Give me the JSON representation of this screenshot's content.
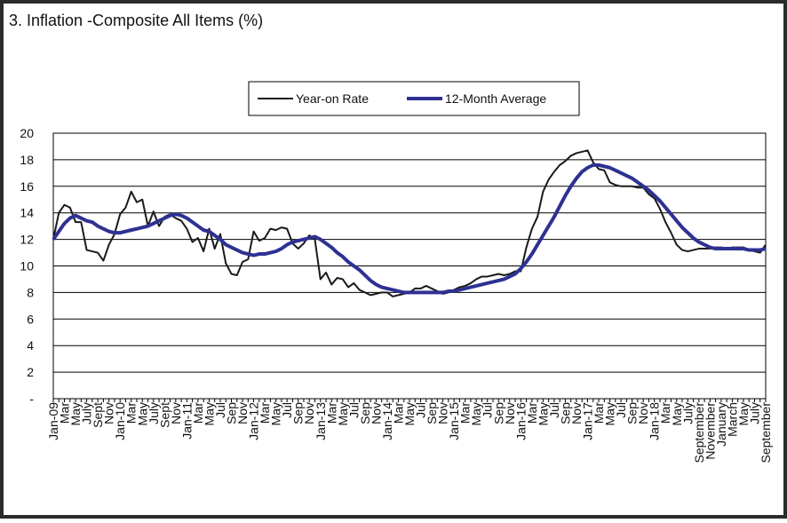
{
  "chart_data": {
    "type": "line",
    "title": "3. Inflation -Composite All Items (%)",
    "categories": [
      "Jan-09",
      null,
      "Mar",
      null,
      "May",
      null,
      "July",
      null,
      "Sept",
      null,
      "Nov",
      null,
      "Jan-10",
      null,
      "Mar",
      null,
      "May",
      null,
      "July",
      null,
      "Sept",
      null,
      "Nov",
      null,
      "Jan-11",
      null,
      "Mar",
      null,
      "May",
      null,
      "Jul",
      null,
      "Sep",
      null,
      "Nov",
      null,
      "Jan-12",
      null,
      "Mar",
      null,
      "May",
      null,
      "Jul",
      null,
      "Sep",
      null,
      "Nov",
      null,
      "Jan-13",
      null,
      "Mar",
      null,
      "May",
      null,
      "Jul",
      null,
      "Sep",
      null,
      "Nov",
      null,
      "Jan-14",
      null,
      "Mar",
      null,
      "May",
      null,
      "Jul",
      null,
      "Sep",
      null,
      "Nov",
      null,
      "Jan-15",
      null,
      "Mar",
      null,
      "May",
      null,
      "Jul",
      null,
      "Sep",
      null,
      "Nov",
      null,
      "Jan-16",
      null,
      "Mar",
      null,
      "May",
      null,
      "Jul",
      null,
      "Sep",
      null,
      "Nov",
      null,
      "Jan-17",
      null,
      "Mar",
      null,
      "May",
      null,
      "Jul",
      null,
      "Sep",
      null,
      "Nov",
      null,
      "Jan-18",
      null,
      "Mar",
      null,
      "May",
      null,
      "July",
      null,
      "September",
      null,
      "November",
      null,
      "January",
      null,
      "March",
      null,
      "May",
      null,
      "July",
      null,
      "September"
    ],
    "series": [
      {
        "name": "Year-on Rate",
        "color": "#1a1a1a",
        "width": 2,
        "values": [
          12.0,
          14.0,
          14.6,
          14.4,
          13.3,
          13.3,
          11.2,
          11.1,
          11.0,
          10.4,
          11.6,
          12.4,
          13.9,
          14.4,
          15.6,
          14.8,
          15.0,
          13.0,
          14.1,
          13.0,
          13.7,
          13.9,
          13.6,
          13.4,
          12.8,
          11.8,
          12.1,
          11.1,
          12.8,
          11.3,
          12.4,
          10.2,
          9.4,
          9.3,
          10.3,
          10.5,
          12.6,
          11.9,
          12.1,
          12.8,
          12.7,
          12.9,
          12.8,
          11.7,
          11.3,
          11.7,
          12.3,
          12.0,
          9.0,
          9.5,
          8.6,
          9.1,
          9.0,
          8.4,
          8.7,
          8.2,
          8.0,
          7.8,
          7.9,
          8.0,
          8.0,
          7.7,
          7.8,
          7.9,
          8.0,
          8.3,
          8.3,
          8.5,
          8.3,
          8.1,
          7.9,
          8.0,
          8.2,
          8.4,
          8.5,
          8.7,
          9.0,
          9.2,
          9.2,
          9.3,
          9.4,
          9.3,
          9.4,
          9.6,
          9.6,
          11.4,
          12.8,
          13.7,
          15.6,
          16.5,
          17.1,
          17.6,
          17.9,
          18.3,
          18.5,
          18.6,
          18.7,
          17.8,
          17.3,
          17.2,
          16.3,
          16.1,
          16.0,
          16.0,
          16.0,
          15.9,
          15.9,
          15.4,
          15.1,
          14.3,
          13.3,
          12.5,
          11.6,
          11.2,
          11.1,
          11.2,
          11.3,
          11.3,
          11.3,
          11.4,
          11.4,
          11.3,
          11.4,
          11.4,
          11.4,
          11.2,
          11.1,
          11.0,
          11.6
        ]
      },
      {
        "name": "12-Month Average",
        "color": "#2e3192",
        "width": 4,
        "values": [
          12.0,
          12.6,
          13.2,
          13.6,
          13.8,
          13.6,
          13.4,
          13.3,
          13.0,
          12.8,
          12.6,
          12.5,
          12.5,
          12.6,
          12.7,
          12.8,
          12.9,
          13.0,
          13.2,
          13.4,
          13.6,
          13.8,
          13.9,
          13.8,
          13.6,
          13.3,
          13.0,
          12.7,
          12.6,
          12.3,
          12.0,
          11.6,
          11.4,
          11.2,
          11.0,
          10.9,
          10.8,
          10.9,
          10.9,
          11.0,
          11.1,
          11.3,
          11.6,
          11.8,
          11.9,
          12.0,
          12.1,
          12.2,
          12.0,
          11.7,
          11.4,
          11.0,
          10.7,
          10.3,
          10.0,
          9.7,
          9.3,
          8.9,
          8.6,
          8.4,
          8.3,
          8.2,
          8.1,
          8.0,
          8.0,
          8.0,
          8.0,
          8.0,
          8.0,
          8.0,
          8.0,
          8.1,
          8.1,
          8.2,
          8.3,
          8.4,
          8.5,
          8.6,
          8.7,
          8.8,
          8.9,
          9.0,
          9.2,
          9.4,
          9.8,
          10.3,
          10.9,
          11.6,
          12.3,
          13.0,
          13.7,
          14.5,
          15.3,
          16.0,
          16.6,
          17.1,
          17.4,
          17.6,
          17.6,
          17.5,
          17.4,
          17.2,
          17.0,
          16.8,
          16.6,
          16.3,
          16.0,
          15.7,
          15.3,
          14.9,
          14.4,
          13.9,
          13.4,
          12.9,
          12.5,
          12.1,
          11.8,
          11.6,
          11.4,
          11.3,
          11.3,
          11.3,
          11.3,
          11.3,
          11.3,
          11.2,
          11.2,
          11.2,
          11.3
        ]
      }
    ],
    "ylim": [
      0,
      20
    ],
    "yticks": [
      {
        "value": 0,
        "label": "-"
      },
      2,
      4,
      6,
      8,
      10,
      12,
      14,
      16,
      18,
      20
    ],
    "grid": true,
    "legend": "top"
  }
}
